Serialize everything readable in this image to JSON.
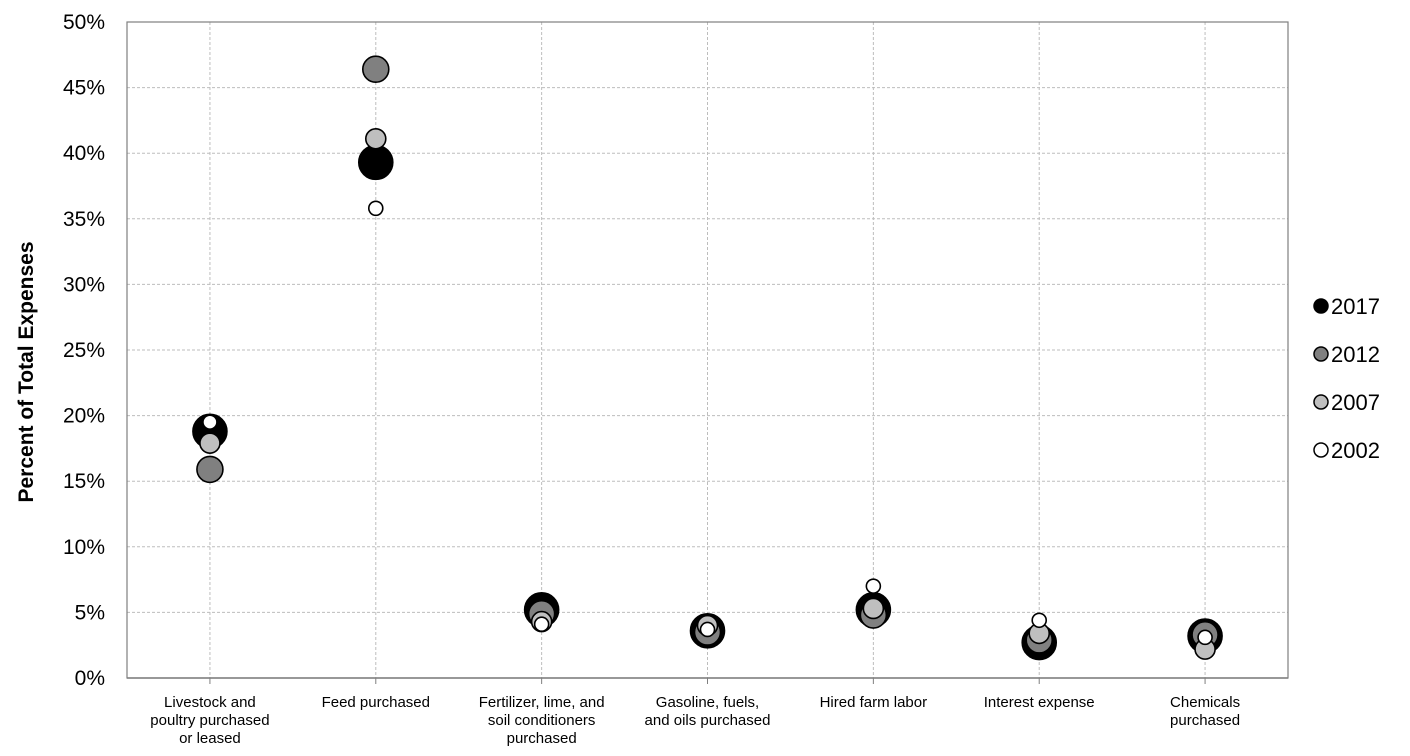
{
  "chart_data": {
    "type": "scatter",
    "title": "",
    "xlabel": "",
    "ylabel": "Percent of Total Expenses",
    "ylim": [
      0,
      50
    ],
    "yticks": [
      "0%",
      "5%",
      "10%",
      "15%",
      "20%",
      "25%",
      "30%",
      "35%",
      "40%",
      "45%",
      "50%"
    ],
    "grid": true,
    "legend_position": "right",
    "categories": [
      [
        "Livestock and",
        "poultry purchased",
        "or leased"
      ],
      [
        "Feed purchased"
      ],
      [
        "Fertilizer, lime, and",
        "soil conditioners",
        "purchased"
      ],
      [
        "Gasoline, fuels,",
        "and oils purchased"
      ],
      [
        "Hired farm labor"
      ],
      [
        "Interest expense"
      ],
      [
        "Chemicals",
        "purchased"
      ]
    ],
    "series": [
      {
        "name": "2017",
        "color": "#000000",
        "size": "large",
        "values": [
          18.8,
          39.3,
          5.2,
          3.6,
          5.2,
          2.7,
          3.2
        ]
      },
      {
        "name": "2012",
        "color": "#808080",
        "size": "medium",
        "values": [
          15.9,
          46.4,
          4.9,
          3.5,
          4.8,
          2.9,
          3.3
        ]
      },
      {
        "name": "2007",
        "color": "#bfbfbf",
        "size": "small",
        "values": [
          17.9,
          41.1,
          4.3,
          4.0,
          5.3,
          3.4,
          2.2
        ]
      },
      {
        "name": "2002",
        "color": "#ffffff",
        "size": "tiny",
        "values": [
          19.5,
          35.8,
          4.1,
          3.7,
          7.0,
          4.4,
          3.1
        ]
      }
    ]
  }
}
